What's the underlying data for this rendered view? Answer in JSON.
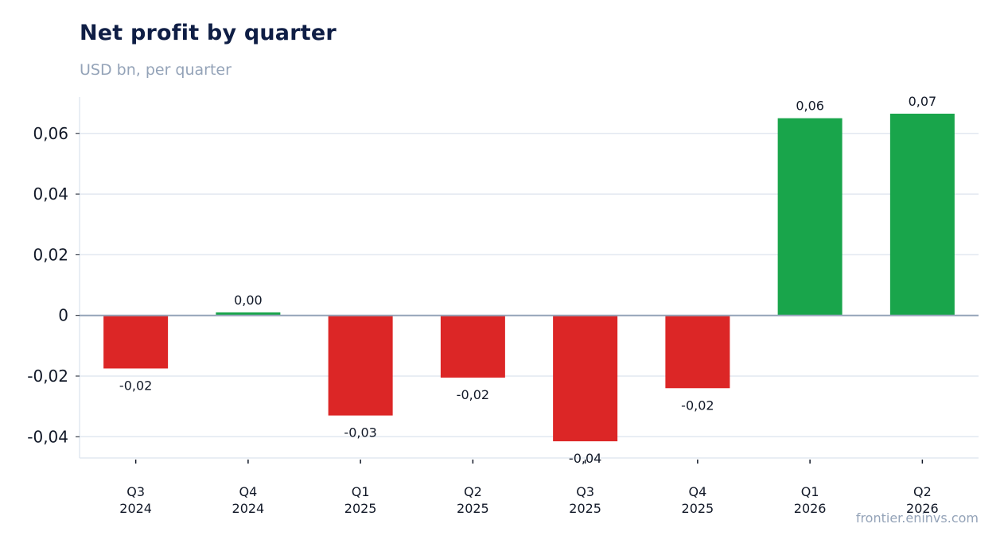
{
  "title": "Net profit by quarter",
  "subtitle": "USD bn, per quarter",
  "source": "frontier.eninvs.com",
  "colors": {
    "positive": "#19a54b",
    "negative": "#dc2626",
    "grid": "#e2e8f0",
    "zero": "#94a3b8"
  },
  "chart_data": {
    "type": "bar",
    "title": "Net profit by quarter",
    "subtitle": "USD bn, per quarter",
    "xlabel": "",
    "ylabel": "",
    "categories": [
      [
        "Q3",
        "2024"
      ],
      [
        "Q4",
        "2024"
      ],
      [
        "Q1",
        "2025"
      ],
      [
        "Q2",
        "2025"
      ],
      [
        "Q3",
        "2025"
      ],
      [
        "Q4",
        "2025"
      ],
      [
        "Q1",
        "2026"
      ],
      [
        "Q2",
        "2026"
      ]
    ],
    "values": [
      -0.0175,
      0.001,
      -0.033,
      -0.0205,
      -0.0415,
      -0.024,
      0.065,
      0.0665
    ],
    "data_labels": [
      "-0,02",
      "0,00",
      "-0,03",
      "-0,02",
      "-0,04",
      "-0,02",
      "0,06",
      "0,07"
    ],
    "yticks": [
      -0.04,
      -0.02,
      0,
      0.02,
      0.04,
      0.06
    ],
    "ytick_labels": [
      "-0,04",
      "-0,02",
      "0",
      "0,02",
      "0,04",
      "0,06"
    ],
    "ylim": [
      -0.047,
      0.072
    ],
    "grid": true,
    "legend": "none"
  }
}
